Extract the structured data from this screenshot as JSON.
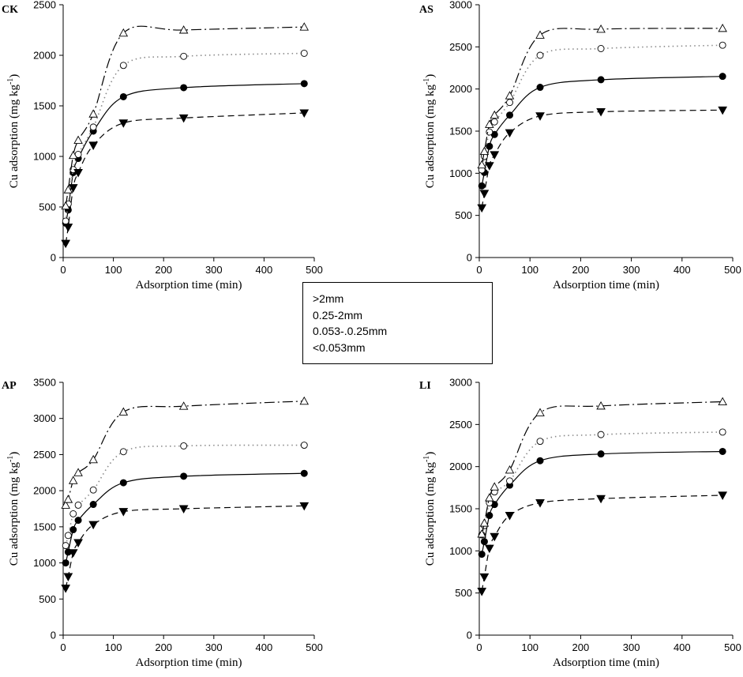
{
  "chart_data": [
    {
      "type": "line",
      "title": "CK",
      "xlabel": "Adsorption time (min)",
      "ylabel": "Cu adsorption (mg kg-1)",
      "ylabel_main": "Cu adsorption (mg kg",
      "ylabel_sup": "-1",
      "ylabel_close": ")",
      "xlim": [
        0,
        500
      ],
      "ylim": [
        0,
        2500
      ],
      "xticks": [
        "0",
        "100",
        "200",
        "300",
        "400",
        "500"
      ],
      "yticks": [
        "0",
        "500",
        "1000",
        "1500",
        "2000",
        "2500"
      ],
      "x": [
        5,
        10,
        20,
        30,
        60,
        120,
        240,
        480
      ],
      "series": [
        {
          "name": ">2mm",
          "marker": "circle-filled",
          "line": "solid",
          "values": [
            340,
            470,
            840,
            980,
            1250,
            1590,
            1680,
            1720
          ]
        },
        {
          "name": "0.25-2mm",
          "marker": "circle-open",
          "line": "dotted",
          "values": [
            360,
            530,
            870,
            1020,
            1290,
            1900,
            1990,
            2020
          ]
        },
        {
          "name": "0.053-.0.25mm",
          "marker": "triangle-up-open",
          "line": "dashdot",
          "values": [
            510,
            670,
            1010,
            1160,
            1420,
            2220,
            2250,
            2280
          ]
        },
        {
          "name": "<0.053mm",
          "marker": "triangle-down-filled",
          "line": "dashed",
          "values": [
            140,
            300,
            690,
            840,
            1110,
            1330,
            1380,
            1430
          ]
        }
      ]
    },
    {
      "type": "line",
      "title": "AS",
      "xlabel": "Adsorption time (min)",
      "ylabel": "Cu adsorption (mg kg-1)",
      "ylabel_main": "Cu adsorption (mg kg",
      "ylabel_sup": "-1",
      "ylabel_close": ")",
      "xlim": [
        0,
        500
      ],
      "ylim": [
        0,
        3000
      ],
      "xticks": [
        "0",
        "100",
        "200",
        "300",
        "400",
        "500"
      ],
      "yticks": [
        "0",
        "500",
        "1000",
        "1500",
        "2000",
        "2500",
        "3000"
      ],
      "x": [
        5,
        10,
        20,
        30,
        60,
        120,
        240,
        480
      ],
      "series": [
        {
          "name": ">2mm",
          "marker": "circle-filled",
          "line": "solid",
          "values": [
            850,
            1010,
            1320,
            1460,
            1690,
            2020,
            2110,
            2150
          ]
        },
        {
          "name": "0.25-2mm",
          "marker": "circle-open",
          "line": "dotted",
          "values": [
            1040,
            1200,
            1490,
            1610,
            1840,
            2400,
            2480,
            2520
          ]
        },
        {
          "name": "0.053-.0.25mm",
          "marker": "triangle-up-open",
          "line": "dashdot",
          "values": [
            1100,
            1260,
            1580,
            1690,
            1920,
            2640,
            2710,
            2720
          ]
        },
        {
          "name": "<0.053mm",
          "marker": "triangle-down-filled",
          "line": "dashed",
          "values": [
            590,
            760,
            1090,
            1220,
            1480,
            1680,
            1730,
            1750
          ]
        }
      ]
    },
    {
      "type": "line",
      "title": "AP",
      "xlabel": "Adsorption time (min)",
      "ylabel": "Cu adsorption (mg kg-1)",
      "ylabel_main": "Cu adsorption (mg kg",
      "ylabel_sup": "-1",
      "ylabel_close": ")",
      "xlim": [
        0,
        500
      ],
      "ylim": [
        0,
        3500
      ],
      "xticks": [
        "0",
        "100",
        "200",
        "300",
        "400",
        "500"
      ],
      "yticks": [
        "0",
        "500",
        "1000",
        "1500",
        "2000",
        "2500",
        "3000",
        "3500"
      ],
      "x": [
        5,
        10,
        20,
        30,
        60,
        120,
        240,
        480
      ],
      "series": [
        {
          "name": ">2mm",
          "marker": "circle-filled",
          "line": "solid",
          "values": [
            1000,
            1150,
            1460,
            1590,
            1810,
            2110,
            2200,
            2240
          ]
        },
        {
          "name": "0.25-2mm",
          "marker": "circle-open",
          "line": "dotted",
          "values": [
            1240,
            1380,
            1680,
            1800,
            2010,
            2540,
            2620,
            2630
          ]
        },
        {
          "name": "0.053-.0.25mm",
          "marker": "triangle-up-open",
          "line": "dashdot",
          "values": [
            1800,
            1880,
            2140,
            2250,
            2430,
            3090,
            3170,
            3240
          ]
        },
        {
          "name": "<0.053mm",
          "marker": "triangle-down-filled",
          "line": "dashed",
          "values": [
            650,
            810,
            1140,
            1280,
            1530,
            1710,
            1750,
            1790
          ]
        }
      ]
    },
    {
      "type": "line",
      "title": "LI",
      "xlabel": "Adsorption time (min)",
      "ylabel": "Cu adsorption (mg kg-1)",
      "ylabel_main": "Cu adsorption (mg kg",
      "ylabel_sup": "-1",
      "ylabel_close": ")",
      "xlim": [
        0,
        500
      ],
      "ylim": [
        0,
        3000
      ],
      "xticks": [
        "0",
        "100",
        "200",
        "300",
        "400",
        "500"
      ],
      "yticks": [
        "0",
        "500",
        "1000",
        "1500",
        "2000",
        "2500",
        "3000"
      ],
      "x": [
        5,
        10,
        20,
        30,
        60,
        120,
        240,
        480
      ],
      "series": [
        {
          "name": ">2mm",
          "marker": "circle-filled",
          "line": "solid",
          "values": [
            960,
            1110,
            1420,
            1550,
            1780,
            2070,
            2150,
            2180
          ]
        },
        {
          "name": "0.25-2mm",
          "marker": "circle-open",
          "line": "dotted",
          "values": [
            1190,
            1300,
            1570,
            1700,
            1830,
            2300,
            2380,
            2410
          ]
        },
        {
          "name": "0.053-.0.25mm",
          "marker": "triangle-up-open",
          "line": "dashdot",
          "values": [
            1200,
            1330,
            1630,
            1760,
            1960,
            2640,
            2720,
            2770
          ]
        },
        {
          "name": "<0.053mm",
          "marker": "triangle-down-filled",
          "line": "dashed",
          "values": [
            520,
            690,
            1030,
            1170,
            1420,
            1570,
            1620,
            1660
          ]
        }
      ]
    }
  ],
  "legend": {
    "entries": [
      ">2mm",
      "0.25-2mm",
      "0.053-.0.25mm",
      "<0.053mm"
    ]
  }
}
